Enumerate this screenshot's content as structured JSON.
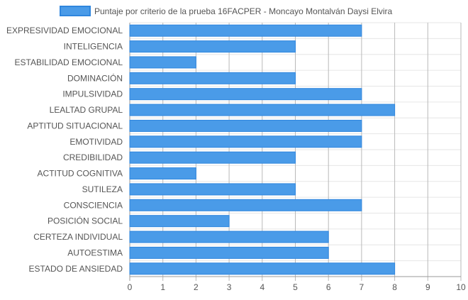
{
  "colors": {
    "bar_fill": "#4a9be8",
    "bar_stroke": "#2f86de",
    "grid": "#e6e6e6",
    "grid_major": "#b9b9b9",
    "axis": "#999999",
    "text": "#555555"
  },
  "chart_data": {
    "type": "bar",
    "orientation": "horizontal",
    "categories": [
      "EXPRESIVIDAD EMOCIONAL",
      "INTELIGENCIA",
      "ESTABILIDAD EMOCIONAL",
      "DOMINACIÓN",
      "IMPULSIVIDAD",
      "LEALTAD GRUPAL",
      "APTITUD SITUACIONAL",
      "EMOTIVIDAD",
      "CREDIBILIDAD",
      "ACTITUD COGNITIVA",
      "SUTILEZA",
      "CONSCIENCIA",
      "POSICIÓN SOCIAL",
      "CERTEZA INDIVIDUAL",
      "AUTOESTIMA",
      "ESTADO DE ANSIEDAD"
    ],
    "series": [
      {
        "name": "Puntaje por criterio de la prueba 16FACPER - Moncayo Montalván Daysi Elvira",
        "values": [
          7,
          5,
          2,
          5,
          7,
          8,
          7,
          7,
          5,
          2,
          5,
          7,
          3,
          6,
          6,
          8
        ]
      }
    ],
    "xlim": [
      0,
      10
    ],
    "x_ticks": [
      "0",
      "1",
      "2",
      "3",
      "4",
      "5",
      "6",
      "7",
      "8",
      "9",
      "10"
    ],
    "legend_position": "top-center",
    "grid": true
  }
}
